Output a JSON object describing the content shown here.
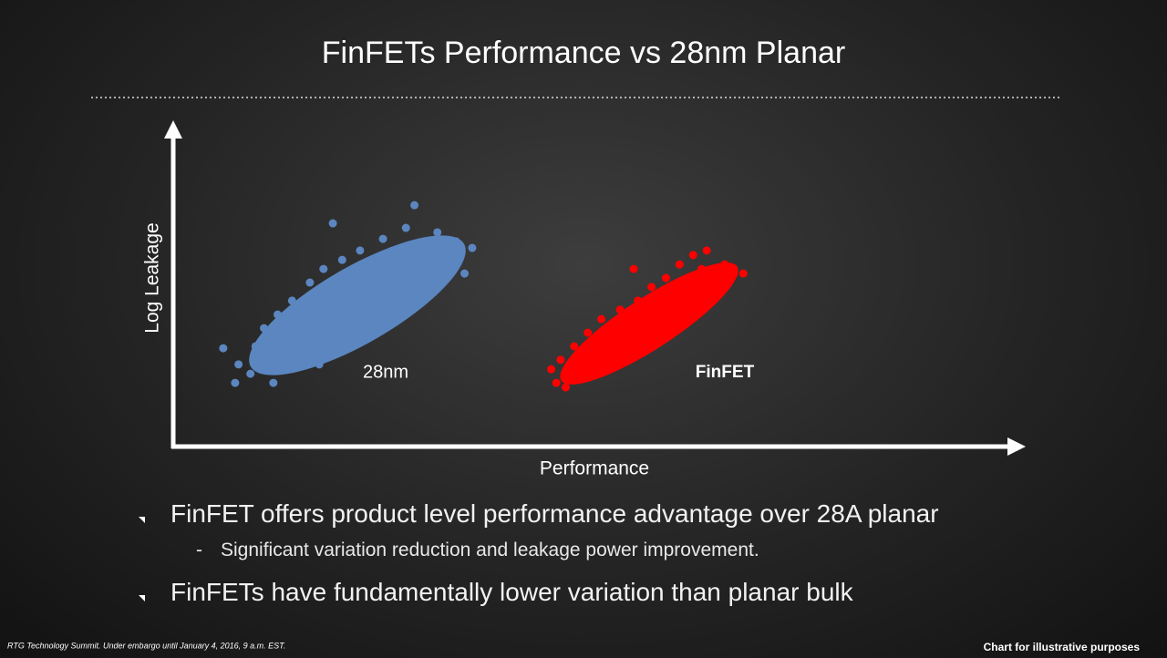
{
  "title": "FinFETs Performance vs 28nm Planar",
  "chart_data": {
    "type": "scatter",
    "x_label": "Performance",
    "y_label": "Log Leakage",
    "xlim": [
      0,
      100
    ],
    "ylim": [
      0,
      100
    ],
    "grid": false,
    "series": [
      {
        "name": "28nm",
        "color": "#5b86c0",
        "x": [
          6.1,
          7.5,
          7.9,
          9.3,
          9.9,
          10.9,
          12.0,
          12.5,
          13.6,
          14.2,
          15.2,
          16.3,
          16.8,
          17.9,
          18.5,
          19.5,
          20.1,
          21.1,
          22.2,
          22.7,
          23.8,
          24.9,
          25.4,
          26.5,
          27.6,
          28.1,
          29.2,
          30.3,
          31.3,
          32.4,
          33.5,
          34.5,
          35.4,
          28.6,
          19.0,
          12.0,
          17.4,
          22.2
        ],
        "values": [
          30.4,
          19.7,
          25.4,
          22.5,
          31.0,
          36.6,
          26.8,
          40.8,
          33.8,
          45.1,
          29.6,
          50.7,
          39.4,
          54.9,
          45.1,
          35.2,
          57.7,
          47.9,
          60.6,
          40.8,
          53.5,
          64.2,
          45.1,
          57.7,
          67.6,
          50.7,
          62.0,
          56.3,
          66.2,
          59.2,
          63.4,
          53.5,
          61.4,
          74.6,
          69.0,
          19.7,
          25.4,
          36.6
        ]
      },
      {
        "name": "FinFET",
        "color": "#ff0000",
        "x": [
          44.7,
          45.3,
          45.8,
          46.9,
          47.4,
          48.5,
          49.0,
          50.1,
          50.6,
          51.7,
          52.8,
          53.9,
          54.4,
          54.9,
          56.0,
          56.5,
          57.6,
          58.2,
          59.2,
          59.8,
          60.8,
          61.4,
          62.4,
          63.0,
          64.1,
          65.1,
          66.2,
          67.3,
          46.4,
          49.6
        ],
        "values": [
          23.9,
          19.7,
          26.8,
          22.5,
          31.0,
          26.8,
          35.2,
          29.6,
          39.4,
          33.8,
          42.3,
          36.6,
          54.9,
          45.1,
          40.8,
          49.3,
          45.1,
          52.1,
          47.9,
          56.3,
          52.1,
          59.2,
          54.9,
          60.6,
          53.5,
          56.3,
          53.5,
          53.5,
          18.3,
          25.4
        ]
      }
    ]
  },
  "bullets": [
    {
      "text": "FinFET offers product level performance advantage over 28A planar",
      "sub": [
        "Significant variation reduction and leakage power improvement."
      ]
    },
    {
      "text": "FinFETs have fundamentally lower variation than planar bulk",
      "sub": []
    }
  ],
  "footer": {
    "left": "RTG Technology Summit. Under embargo until January 4, 2016, 9 a.m. EST.",
    "right": "Chart for illustrative purposes"
  }
}
